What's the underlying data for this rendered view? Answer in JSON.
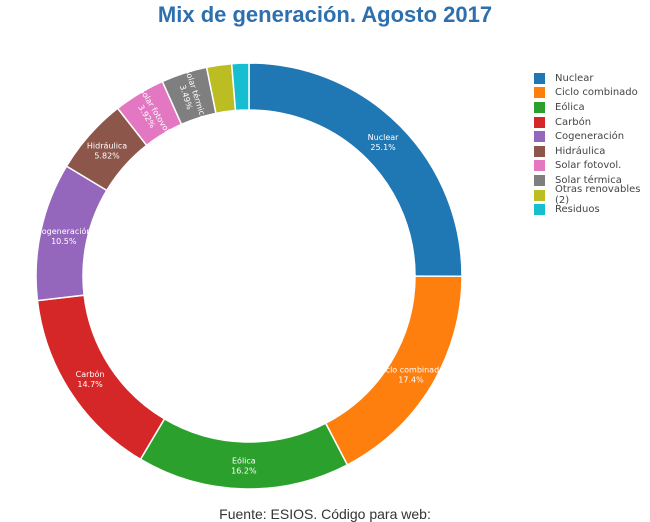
{
  "chart_data": {
    "type": "pie",
    "title": "Mix de generación. Agosto 2017",
    "legend_position": "right",
    "slices": [
      {
        "name": "Nuclear",
        "value": 25.1,
        "label": "25.1%",
        "color": "#1f77b4",
        "show_label": true
      },
      {
        "name": "Ciclo combinado",
        "value": 17.4,
        "label": "17.4%",
        "color": "#ff7f0e",
        "show_label": true
      },
      {
        "name": "Eólica",
        "value": 16.2,
        "label": "16.2%",
        "color": "#2ca02c",
        "show_label": true
      },
      {
        "name": "Carbón",
        "value": 14.7,
        "label": "14.7%",
        "color": "#d62728",
        "show_label": true
      },
      {
        "name": "Cogeneración",
        "value": 10.5,
        "label": "10.5%",
        "color": "#9467bd",
        "show_label": true
      },
      {
        "name": "Hidráulica",
        "value": 5.82,
        "label": "5.82%",
        "color": "#8c564b",
        "show_label": true
      },
      {
        "name": "Solar fotovol.",
        "value": 3.92,
        "label": "3.92%",
        "color": "#e377c2",
        "show_label": true
      },
      {
        "name": "Solar térmica",
        "value": 3.49,
        "label": "3.49%",
        "color": "#7f7f7f",
        "show_label": true
      },
      {
        "name": "Otras renovables (2)",
        "value": 1.9,
        "label": "",
        "color": "#bcbd22",
        "show_label": false
      },
      {
        "name": "Residuos",
        "value": 1.3,
        "label": "",
        "color": "#17becf",
        "show_label": false
      }
    ]
  },
  "footer": {
    "text": "Fuente: ESIOS. Código para web:"
  }
}
